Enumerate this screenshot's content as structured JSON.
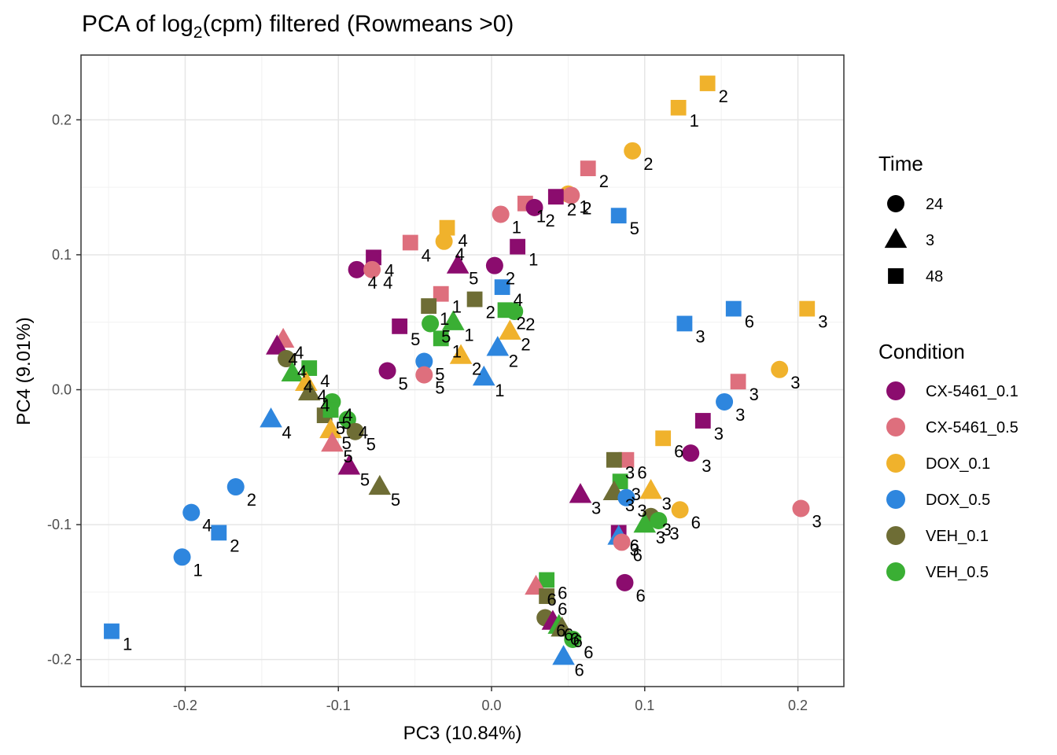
{
  "chart_data": {
    "type": "scatter",
    "title_main": "PCA of log",
    "title_sub": "2",
    "title_rest": "(cpm) filtered (Rowmeans >0)",
    "xlabel": "PC3 (10.84%)",
    "ylabel": "PC4 (9.01%)",
    "xlim": [
      -0.268,
      0.23
    ],
    "ylim": [
      -0.22,
      0.248
    ],
    "xticks": [
      -0.2,
      -0.1,
      0.0,
      0.1,
      0.2
    ],
    "xtick_labels": [
      "-0.2",
      "-0.1",
      "0.0",
      "0.1",
      "0.2"
    ],
    "yticks": [
      -0.2,
      -0.1,
      0.0,
      0.1,
      0.2
    ],
    "ytick_labels": [
      "-0.2",
      "-0.1",
      "0.0",
      "0.1",
      "0.2"
    ],
    "grid": true,
    "legend_time": {
      "title": "Time",
      "items": [
        {
          "label": "24",
          "shape": "circle"
        },
        {
          "label": "3",
          "shape": "triangle"
        },
        {
          "label": "48",
          "shape": "square"
        }
      ]
    },
    "legend_condition": {
      "title": "Condition",
      "items": [
        {
          "label": "CX-5461_0.1",
          "color": "#8B0C6E"
        },
        {
          "label": "CX-5461_0.5",
          "color": "#DE6F7D"
        },
        {
          "label": "DOX_0.1",
          "color": "#F0B22C"
        },
        {
          "label": "DOX_0.5",
          "color": "#2E86DE"
        },
        {
          "label": "VEH_0.1",
          "color": "#6E6D35"
        },
        {
          "label": "VEH_0.5",
          "color": "#3AAF34"
        }
      ]
    },
    "points": [
      {
        "x": 0.141,
        "y": 0.227,
        "cond": "DOX_0.1",
        "shape": "square",
        "label": "2"
      },
      {
        "x": 0.122,
        "y": 0.209,
        "cond": "DOX_0.1",
        "shape": "square",
        "label": "1"
      },
      {
        "x": 0.092,
        "y": 0.177,
        "cond": "DOX_0.1",
        "shape": "circle",
        "label": "2"
      },
      {
        "x": 0.063,
        "y": 0.164,
        "cond": "CX-5461_0.5",
        "shape": "square",
        "label": "2"
      },
      {
        "x": 0.05,
        "y": 0.145,
        "cond": "DOX_0.1",
        "shape": "circle",
        "label": "1"
      },
      {
        "x": 0.052,
        "y": 0.144,
        "cond": "CX-5461_0.5",
        "shape": "circle",
        "label": "2"
      },
      {
        "x": 0.042,
        "y": 0.143,
        "cond": "CX-5461_0.1",
        "shape": "square",
        "label": "2"
      },
      {
        "x": 0.022,
        "y": 0.138,
        "cond": "CX-5461_0.5",
        "shape": "square",
        "label": "1"
      },
      {
        "x": 0.028,
        "y": 0.135,
        "cond": "CX-5461_0.1",
        "shape": "circle",
        "label": "2"
      },
      {
        "x": 0.006,
        "y": 0.13,
        "cond": "CX-5461_0.5",
        "shape": "circle",
        "label": "1"
      },
      {
        "x": 0.083,
        "y": 0.129,
        "cond": "DOX_0.5",
        "shape": "square",
        "label": "5"
      },
      {
        "x": -0.029,
        "y": 0.12,
        "cond": "DOX_0.1",
        "shape": "square",
        "label": "4"
      },
      {
        "x": -0.053,
        "y": 0.109,
        "cond": "CX-5461_0.5",
        "shape": "square",
        "label": "4"
      },
      {
        "x": -0.031,
        "y": 0.11,
        "cond": "DOX_0.1",
        "shape": "circle",
        "label": "4"
      },
      {
        "x": 0.017,
        "y": 0.106,
        "cond": "CX-5461_0.1",
        "shape": "square",
        "label": "1"
      },
      {
        "x": -0.077,
        "y": 0.098,
        "cond": "CX-5461_0.1",
        "shape": "square",
        "label": "4"
      },
      {
        "x": 0.002,
        "y": 0.092,
        "cond": "CX-5461_0.1",
        "shape": "circle",
        "label": "2"
      },
      {
        "x": -0.022,
        "y": 0.092,
        "cond": "CX-5461_0.1",
        "shape": "triangle",
        "label": "5"
      },
      {
        "x": -0.088,
        "y": 0.089,
        "cond": "CX-5461_0.1",
        "shape": "circle",
        "label": "4"
      },
      {
        "x": -0.078,
        "y": 0.089,
        "cond": "CX-5461_0.5",
        "shape": "circle",
        "label": "4"
      },
      {
        "x": 0.007,
        "y": 0.076,
        "cond": "DOX_0.5",
        "shape": "square",
        "label": "4"
      },
      {
        "x": -0.033,
        "y": 0.071,
        "cond": "CX-5461_0.5",
        "shape": "square",
        "label": "1"
      },
      {
        "x": -0.011,
        "y": 0.067,
        "cond": "VEH_0.1",
        "shape": "square",
        "label": "2"
      },
      {
        "x": -0.041,
        "y": 0.062,
        "cond": "VEH_0.1",
        "shape": "square",
        "label": "1"
      },
      {
        "x": 0.009,
        "y": 0.059,
        "cond": "VEH_0.5",
        "shape": "square",
        "label": "2"
      },
      {
        "x": 0.015,
        "y": 0.058,
        "cond": "VEH_0.5",
        "shape": "circle",
        "label": "2"
      },
      {
        "x": -0.06,
        "y": 0.047,
        "cond": "CX-5461_0.1",
        "shape": "square",
        "label": "5"
      },
      {
        "x": -0.04,
        "y": 0.049,
        "cond": "VEH_0.5",
        "shape": "circle",
        "label": "5"
      },
      {
        "x": -0.025,
        "y": 0.05,
        "cond": "VEH_0.5",
        "shape": "triangle",
        "label": "1"
      },
      {
        "x": -0.033,
        "y": 0.038,
        "cond": "VEH_0.5",
        "shape": "square",
        "label": "1"
      },
      {
        "x": -0.02,
        "y": 0.025,
        "cond": "DOX_0.1",
        "shape": "triangle",
        "label": "2"
      },
      {
        "x": 0.012,
        "y": 0.043,
        "cond": "DOX_0.1",
        "shape": "triangle",
        "label": "2"
      },
      {
        "x": 0.004,
        "y": 0.031,
        "cond": "DOX_0.5",
        "shape": "triangle",
        "label": "2"
      },
      {
        "x": -0.044,
        "y": 0.021,
        "cond": "DOX_0.5",
        "shape": "circle",
        "label": "5"
      },
      {
        "x": -0.068,
        "y": 0.014,
        "cond": "CX-5461_0.1",
        "shape": "circle",
        "label": "5"
      },
      {
        "x": -0.044,
        "y": 0.011,
        "cond": "CX-5461_0.5",
        "shape": "circle",
        "label": "5"
      },
      {
        "x": -0.005,
        "y": 0.009,
        "cond": "DOX_0.5",
        "shape": "triangle",
        "label": "1"
      },
      {
        "x": -0.136,
        "y": 0.037,
        "cond": "CX-5461_0.5",
        "shape": "triangle",
        "label": "4"
      },
      {
        "x": -0.14,
        "y": 0.032,
        "cond": "CX-5461_0.1",
        "shape": "triangle",
        "label": "4"
      },
      {
        "x": -0.134,
        "y": 0.023,
        "cond": "VEH_0.1",
        "shape": "circle",
        "label": "4"
      },
      {
        "x": -0.13,
        "y": 0.012,
        "cond": "VEH_0.5",
        "shape": "triangle",
        "label": "4"
      },
      {
        "x": -0.119,
        "y": 0.016,
        "cond": "VEH_0.5",
        "shape": "square",
        "label": "4"
      },
      {
        "x": -0.121,
        "y": 0.005,
        "cond": "DOX_0.1",
        "shape": "triangle",
        "label": "4"
      },
      {
        "x": -0.119,
        "y": -0.002,
        "cond": "VEH_0.1",
        "shape": "triangle",
        "label": "4"
      },
      {
        "x": -0.104,
        "y": -0.009,
        "cond": "VEH_0.5",
        "shape": "circle",
        "label": "4"
      },
      {
        "x": -0.094,
        "y": -0.022,
        "cond": "VEH_0.5",
        "shape": "circle",
        "label": "4"
      },
      {
        "x": -0.109,
        "y": -0.019,
        "cond": "VEH_0.1",
        "shape": "square",
        "label": "5"
      },
      {
        "x": -0.105,
        "y": -0.015,
        "cond": "VEH_0.5",
        "shape": "square",
        "label": "5"
      },
      {
        "x": -0.144,
        "y": -0.022,
        "cond": "DOX_0.5",
        "shape": "triangle",
        "label": "4"
      },
      {
        "x": -0.105,
        "y": -0.03,
        "cond": "DOX_0.1",
        "shape": "triangle",
        "label": "5"
      },
      {
        "x": -0.089,
        "y": -0.031,
        "cond": "VEH_0.1",
        "shape": "circle",
        "label": "5"
      },
      {
        "x": -0.104,
        "y": -0.04,
        "cond": "CX-5461_0.5",
        "shape": "triangle",
        "label": "5"
      },
      {
        "x": -0.093,
        "y": -0.057,
        "cond": "CX-5461_0.1",
        "shape": "triangle",
        "label": "5"
      },
      {
        "x": -0.073,
        "y": -0.072,
        "cond": "VEH_0.1",
        "shape": "triangle",
        "label": "5"
      },
      {
        "x": -0.167,
        "y": -0.072,
        "cond": "DOX_0.5",
        "shape": "circle",
        "label": "2"
      },
      {
        "x": -0.196,
        "y": -0.091,
        "cond": "DOX_0.5",
        "shape": "circle",
        "label": "4"
      },
      {
        "x": -0.178,
        "y": -0.106,
        "cond": "DOX_0.5",
        "shape": "square",
        "label": "2"
      },
      {
        "x": -0.202,
        "y": -0.124,
        "cond": "DOX_0.5",
        "shape": "circle",
        "label": "1"
      },
      {
        "x": -0.248,
        "y": -0.179,
        "cond": "DOX_0.5",
        "shape": "square",
        "label": "1"
      },
      {
        "x": 0.206,
        "y": 0.06,
        "cond": "DOX_0.1",
        "shape": "square",
        "label": "3"
      },
      {
        "x": 0.158,
        "y": 0.06,
        "cond": "DOX_0.5",
        "shape": "square",
        "label": "6"
      },
      {
        "x": 0.126,
        "y": 0.049,
        "cond": "DOX_0.5",
        "shape": "square",
        "label": "3"
      },
      {
        "x": 0.188,
        "y": 0.015,
        "cond": "DOX_0.1",
        "shape": "circle",
        "label": "3"
      },
      {
        "x": 0.161,
        "y": 0.006,
        "cond": "CX-5461_0.5",
        "shape": "square",
        "label": "3"
      },
      {
        "x": 0.152,
        "y": -0.009,
        "cond": "DOX_0.5",
        "shape": "circle",
        "label": "3"
      },
      {
        "x": 0.138,
        "y": -0.023,
        "cond": "CX-5461_0.1",
        "shape": "square",
        "label": "3"
      },
      {
        "x": 0.112,
        "y": -0.036,
        "cond": "DOX_0.1",
        "shape": "square",
        "label": "6"
      },
      {
        "x": 0.13,
        "y": -0.047,
        "cond": "CX-5461_0.1",
        "shape": "circle",
        "label": "3"
      },
      {
        "x": 0.088,
        "y": -0.052,
        "cond": "CX-5461_0.5",
        "shape": "square",
        "label": "6"
      },
      {
        "x": 0.08,
        "y": -0.052,
        "cond": "VEH_0.1",
        "shape": "square",
        "label": "3"
      },
      {
        "x": 0.084,
        "y": -0.068,
        "cond": "VEH_0.5",
        "shape": "square",
        "label": "3"
      },
      {
        "x": 0.058,
        "y": -0.078,
        "cond": "CX-5461_0.1",
        "shape": "triangle",
        "label": "3"
      },
      {
        "x": 0.08,
        "y": -0.076,
        "cond": "VEH_0.1",
        "shape": "triangle",
        "label": "3"
      },
      {
        "x": 0.104,
        "y": -0.075,
        "cond": "DOX_0.1",
        "shape": "triangle",
        "label": "3"
      },
      {
        "x": 0.088,
        "y": -0.08,
        "cond": "DOX_0.5",
        "shape": "circle",
        "label": "3"
      },
      {
        "x": 0.123,
        "y": -0.089,
        "cond": "DOX_0.1",
        "shape": "circle",
        "label": "6"
      },
      {
        "x": 0.104,
        "y": -0.094,
        "cond": "VEH_0.1",
        "shape": "circle",
        "label": "3"
      },
      {
        "x": 0.1,
        "y": -0.1,
        "cond": "VEH_0.5",
        "shape": "triangle",
        "label": "3"
      },
      {
        "x": 0.109,
        "y": -0.097,
        "cond": "VEH_0.5",
        "shape": "circle",
        "label": "3"
      },
      {
        "x": 0.083,
        "y": -0.106,
        "cond": "CX-5461_0.1",
        "shape": "square",
        "label": "6"
      },
      {
        "x": 0.083,
        "y": -0.109,
        "cond": "DOX_0.5",
        "shape": "triangle",
        "label": "3"
      },
      {
        "x": 0.085,
        "y": -0.113,
        "cond": "CX-5461_0.5",
        "shape": "circle",
        "label": "6"
      },
      {
        "x": 0.087,
        "y": -0.143,
        "cond": "CX-5461_0.1",
        "shape": "circle",
        "label": "6"
      },
      {
        "x": 0.202,
        "y": -0.088,
        "cond": "CX-5461_0.5",
        "shape": "circle",
        "label": "3"
      },
      {
        "x": 0.036,
        "y": -0.141,
        "cond": "VEH_0.5",
        "shape": "square",
        "label": "6"
      },
      {
        "x": 0.029,
        "y": -0.146,
        "cond": "CX-5461_0.5",
        "shape": "triangle",
        "label": "6"
      },
      {
        "x": 0.036,
        "y": -0.153,
        "cond": "VEH_0.1",
        "shape": "square",
        "label": "6"
      },
      {
        "x": 0.035,
        "y": -0.169,
        "cond": "VEH_0.1",
        "shape": "circle",
        "label": "6"
      },
      {
        "x": 0.04,
        "y": -0.172,
        "cond": "CX-5461_0.1",
        "shape": "triangle",
        "label": "6"
      },
      {
        "x": 0.044,
        "y": -0.175,
        "cond": "VEH_0.5",
        "shape": "triangle",
        "label": "6"
      },
      {
        "x": 0.046,
        "y": -0.177,
        "cond": "VEH_0.1",
        "shape": "triangle",
        "label": "6"
      },
      {
        "x": 0.053,
        "y": -0.185,
        "cond": "VEH_0.5",
        "shape": "circle",
        "label": "6"
      },
      {
        "x": 0.047,
        "y": -0.198,
        "cond": "DOX_0.5",
        "shape": "triangle",
        "label": "6"
      }
    ]
  }
}
